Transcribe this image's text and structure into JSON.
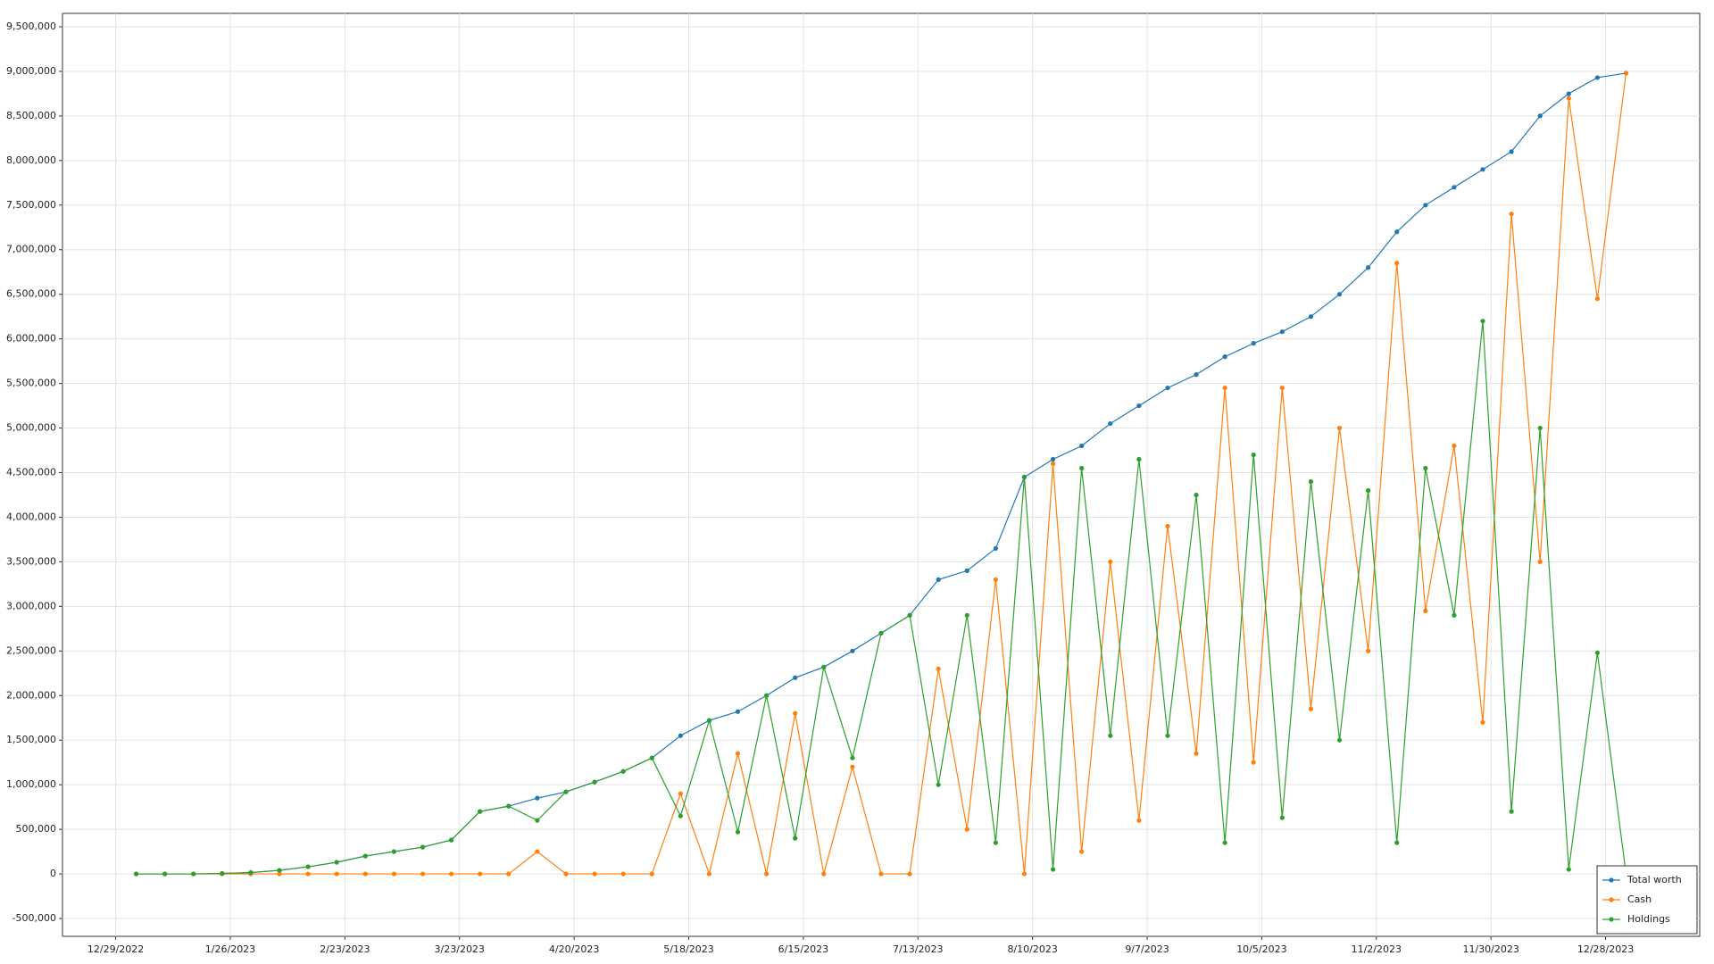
{
  "chart_data": {
    "type": "line",
    "x": [
      "1/3/2023",
      "1/10/2023",
      "1/17/2023",
      "1/24/2023",
      "1/31/2023",
      "2/7/2023",
      "2/14/2023",
      "2/21/2023",
      "2/28/2023",
      "3/7/2023",
      "3/14/2023",
      "3/21/2023",
      "3/28/2023",
      "4/4/2023",
      "4/11/2023",
      "4/18/2023",
      "4/25/2023",
      "5/2/2023",
      "5/9/2023",
      "5/16/2023",
      "5/23/2023",
      "5/30/2023",
      "6/6/2023",
      "6/13/2023",
      "6/20/2023",
      "6/27/2023",
      "7/4/2023",
      "7/11/2023",
      "7/18/2023",
      "7/25/2023",
      "8/1/2023",
      "8/8/2023",
      "8/15/2023",
      "8/22/2023",
      "8/29/2023",
      "9/5/2023",
      "9/12/2023",
      "9/19/2023",
      "9/26/2023",
      "10/3/2023",
      "10/10/2023",
      "10/17/2023",
      "10/24/2023",
      "10/31/2023",
      "11/7/2023",
      "11/14/2023",
      "11/21/2023",
      "11/28/2023",
      "12/5/2023",
      "12/12/2023",
      "12/19/2023",
      "12/26/2023",
      "1/2/2024"
    ],
    "series": [
      {
        "name": "Total worth",
        "color": "#1f77b4",
        "values": [
          0,
          0,
          0,
          5000,
          15000,
          40000,
          80000,
          130000,
          200000,
          250000,
          300000,
          380000,
          700000,
          760000,
          850000,
          920000,
          1030000,
          1150000,
          1300000,
          1550000,
          1720000,
          1820000,
          2000000,
          2200000,
          2320000,
          2500000,
          2700000,
          2900000,
          3300000,
          3400000,
          3650000,
          4450000,
          4650000,
          4800000,
          5050000,
          5250000,
          5450000,
          5600000,
          5800000,
          5950000,
          6080000,
          6250000,
          6500000,
          6800000,
          7200000,
          7500000,
          7700000,
          7900000,
          8100000,
          8500000,
          8750000,
          8930000,
          8980000
        ]
      },
      {
        "name": "Cash",
        "color": "#ff7f0e",
        "values": [
          0,
          0,
          0,
          0,
          0,
          0,
          0,
          0,
          0,
          0,
          0,
          0,
          0,
          0,
          250000,
          0,
          0,
          0,
          0,
          900000,
          0,
          1350000,
          0,
          1800000,
          0,
          1200000,
          0,
          0,
          2300000,
          500000,
          3300000,
          0,
          4600000,
          250000,
          3500000,
          600000,
          3900000,
          1350000,
          5450000,
          1250000,
          5450000,
          1850000,
          5000000,
          2500000,
          6850000,
          2950000,
          4800000,
          1700000,
          7400000,
          3500000,
          8700000,
          6450000,
          8980000
        ]
      },
      {
        "name": "Holdings",
        "color": "#2ca02c",
        "values": [
          0,
          0,
          0,
          5000,
          15000,
          40000,
          80000,
          130000,
          200000,
          250000,
          300000,
          380000,
          700000,
          760000,
          600000,
          920000,
          1030000,
          1150000,
          1300000,
          650000,
          1720000,
          470000,
          2000000,
          400000,
          2320000,
          1300000,
          2700000,
          2900000,
          1000000,
          2900000,
          350000,
          4450000,
          50000,
          4550000,
          1550000,
          4650000,
          1550000,
          4250000,
          350000,
          4700000,
          630000,
          4400000,
          1500000,
          4300000,
          350000,
          4550000,
          2900000,
          6200000,
          700000,
          5000000,
          50000,
          2480000,
          0
        ]
      }
    ],
    "xlim": [
      "12/16/2022",
      "1/20/2024"
    ],
    "xticks": [
      "12/29/2022",
      "1/26/2023",
      "2/23/2023",
      "3/23/2023",
      "4/20/2023",
      "5/18/2023",
      "6/15/2023",
      "7/13/2023",
      "8/10/2023",
      "9/7/2023",
      "10/5/2023",
      "11/2/2023",
      "11/30/2023",
      "12/28/2023"
    ],
    "ylim": [
      -700000,
      9650000
    ],
    "yticks": [
      {
        "value": -500000,
        "label": "-500,000"
      },
      0,
      {
        "value": 500000,
        "label": "500,000"
      },
      {
        "value": 1000000,
        "label": "1,000,000"
      },
      {
        "value": 1500000,
        "label": "1,500,000"
      },
      {
        "value": 2000000,
        "label": "2,000,000"
      },
      {
        "value": 2500000,
        "label": "2,500,000"
      },
      {
        "value": 3000000,
        "label": "3,000,000"
      },
      {
        "value": 3500000,
        "label": "3,500,000"
      },
      {
        "value": 4000000,
        "label": "4,000,000"
      },
      {
        "value": 4500000,
        "label": "4,500,000"
      },
      {
        "value": 5000000,
        "label": "5,000,000"
      },
      {
        "value": 5500000,
        "label": "5,500,000"
      },
      {
        "value": 6000000,
        "label": "6,000,000"
      },
      {
        "value": 6500000,
        "label": "6,500,000"
      },
      {
        "value": 7000000,
        "label": "7,000,000"
      },
      {
        "value": 7500000,
        "label": "7,500,000"
      },
      {
        "value": 8000000,
        "label": "8,000,000"
      },
      {
        "value": 8500000,
        "label": "8,500,000"
      },
      {
        "value": 9000000,
        "label": "9,000,000"
      },
      {
        "value": 9500000,
        "label": "9,500,000"
      }
    ],
    "grid": true,
    "legend": "lower-right"
  }
}
